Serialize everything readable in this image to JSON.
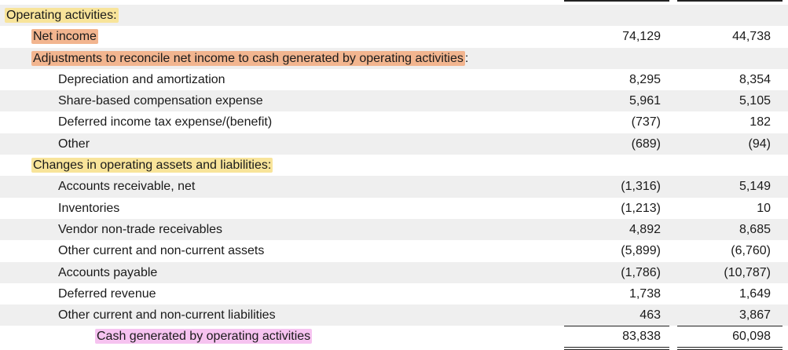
{
  "rows": [
    {
      "label": "Operating activities:",
      "indent": 0,
      "highlight": "yellow",
      "suffix": "",
      "v1": "",
      "v2": "",
      "shade": true
    },
    {
      "label": "Net income",
      "indent": 1,
      "highlight": "orange",
      "suffix": "",
      "v1": "74,129",
      "v2": "44,738",
      "shade": false
    },
    {
      "label": "Adjustments to reconcile net income to cash generated by operating activities",
      "indent": 1,
      "highlight": "orange",
      "suffix": ":",
      "v1": "",
      "v2": "",
      "shade": true
    },
    {
      "label": "Depreciation and amortization",
      "indent": 2,
      "highlight": "",
      "suffix": "",
      "v1": "8,295",
      "v2": "8,354",
      "shade": false
    },
    {
      "label": "Share-based compensation expense",
      "indent": 2,
      "highlight": "",
      "suffix": "",
      "v1": "5,961",
      "v2": "5,105",
      "shade": true
    },
    {
      "label": "Deferred income tax expense/(benefit)",
      "indent": 2,
      "highlight": "",
      "suffix": "",
      "v1": "(737)",
      "v2": "182",
      "shade": false
    },
    {
      "label": "Other",
      "indent": 2,
      "highlight": "",
      "suffix": "",
      "v1": "(689)",
      "v2": "(94)",
      "shade": true
    },
    {
      "label": "Changes in operating assets and liabilities:",
      "indent": 1,
      "highlight": "yellow",
      "suffix": "",
      "v1": "",
      "v2": "",
      "shade": false
    },
    {
      "label": "Accounts receivable, net",
      "indent": 2,
      "highlight": "",
      "suffix": "",
      "v1": "(1,316)",
      "v2": "5,149",
      "shade": true
    },
    {
      "label": "Inventories",
      "indent": 2,
      "highlight": "",
      "suffix": "",
      "v1": "(1,213)",
      "v2": "10",
      "shade": false
    },
    {
      "label": "Vendor non-trade receivables",
      "indent": 2,
      "highlight": "",
      "suffix": "",
      "v1": "4,892",
      "v2": "8,685",
      "shade": true
    },
    {
      "label": "Other current and non-current assets",
      "indent": 2,
      "highlight": "",
      "suffix": "",
      "v1": "(5,899)",
      "v2": "(6,760)",
      "shade": false
    },
    {
      "label": "Accounts payable",
      "indent": 2,
      "highlight": "",
      "suffix": "",
      "v1": "(1,786)",
      "v2": "(10,787)",
      "shade": true
    },
    {
      "label": "Deferred revenue",
      "indent": 2,
      "highlight": "",
      "suffix": "",
      "v1": "1,738",
      "v2": "1,649",
      "shade": false
    },
    {
      "label": "Other current and non-current liabilities",
      "indent": 2,
      "highlight": "",
      "suffix": "",
      "v1": "463",
      "v2": "3,867",
      "shade": true
    },
    {
      "label": "Cash generated by operating activities",
      "indent": 3,
      "highlight": "pink",
      "suffix": "",
      "v1": "83,838",
      "v2": "60,098",
      "shade": false
    }
  ]
}
